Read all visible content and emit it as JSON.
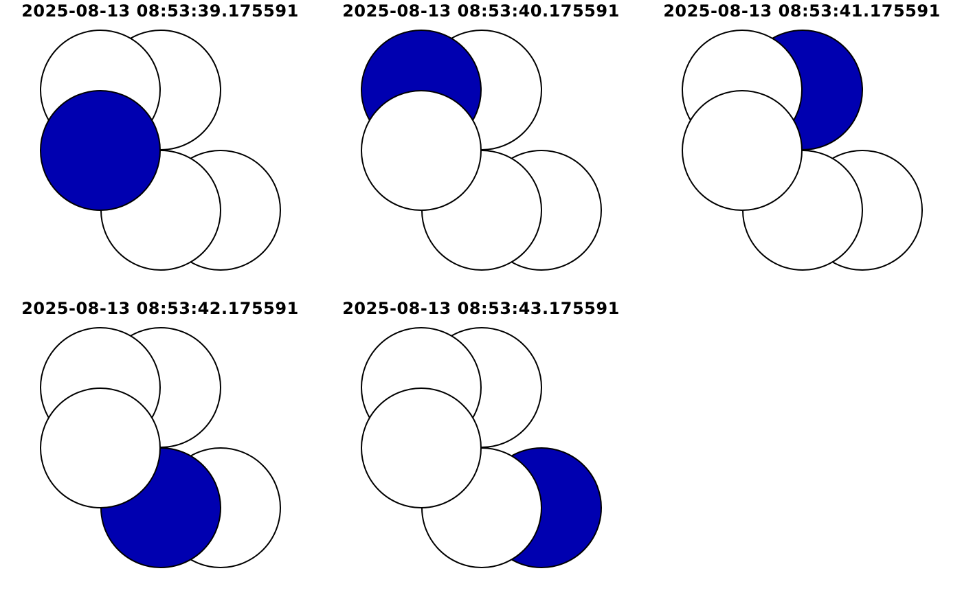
{
  "colors": {
    "highlight": "#0000b0",
    "fill": "#ffffff",
    "stroke": "#000000"
  },
  "panels": [
    {
      "title": "2025-08-13 08:53:39.175591",
      "highlighted": "center-left"
    },
    {
      "title": "2025-08-13 08:53:40.175591",
      "highlighted": "top-left"
    },
    {
      "title": "2025-08-13 08:53:41.175591",
      "highlighted": "top-right"
    },
    {
      "title": "2025-08-13 08:53:42.175591",
      "highlighted": "bottom-center"
    },
    {
      "title": "2025-08-13 08:53:43.175591",
      "highlighted": "bottom-right"
    }
  ]
}
